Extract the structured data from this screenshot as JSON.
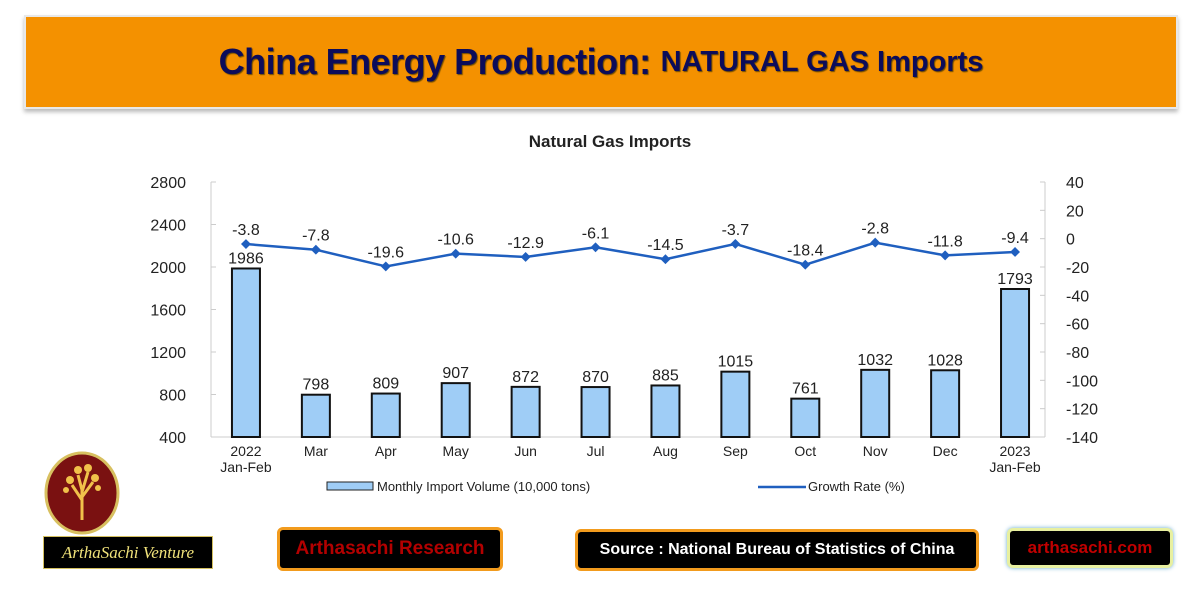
{
  "header": {
    "title_main": "China Energy Production:",
    "title_sub": "NATURAL GAS Imports"
  },
  "chart_data": {
    "type": "bar+line",
    "title": "Natural Gas Imports",
    "categories": [
      "2022\nJan-Feb",
      "Mar",
      "Apr",
      "May",
      "Jun",
      "Jul",
      "Aug",
      "Sep",
      "Oct",
      "Nov",
      "Dec",
      "2023\nJan-Feb"
    ],
    "series": [
      {
        "name": "Monthly Import Volume (10,000 tons)",
        "type": "bar",
        "axis": "left",
        "color": "#9fcdf6",
        "values": [
          1986,
          798,
          809,
          907,
          872,
          870,
          885,
          1015,
          761,
          1032,
          1028,
          1793
        ]
      },
      {
        "name": "Growth Rate (%)",
        "type": "line",
        "axis": "right",
        "color": "#1f5fbf",
        "values": [
          -3.8,
          -7.8,
          -19.6,
          -10.6,
          -12.9,
          -6.1,
          -14.5,
          -3.7,
          -18.4,
          -2.8,
          -11.8,
          -9.4
        ]
      }
    ],
    "y_left": {
      "range": [
        400,
        2800
      ],
      "ticks": [
        400,
        800,
        1200,
        1600,
        2000,
        2400,
        2800
      ]
    },
    "y_right": {
      "range": [
        -140,
        40
      ],
      "ticks": [
        -140,
        -120,
        -100,
        -80,
        -60,
        -40,
        -20,
        0,
        20,
        40
      ]
    },
    "grid": false,
    "legend": "bottom"
  },
  "footer": {
    "logo_text": "ArthaSachi Venture",
    "research": "Arthasachi Research",
    "source": "Source : National Bureau of Statistics of China",
    "site": "arthasachi.com"
  }
}
